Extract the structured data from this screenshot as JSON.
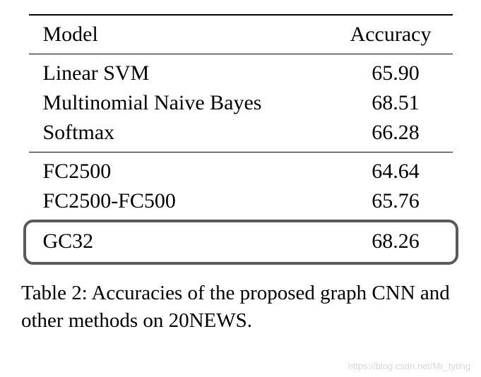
{
  "table": {
    "columns": [
      "Model",
      "Accuracy"
    ],
    "groups": [
      {
        "rows": [
          {
            "model": "Linear SVM",
            "accuracy": "65.90"
          },
          {
            "model": "Multinomial Naive Bayes",
            "accuracy": "68.51"
          },
          {
            "model": "Softmax",
            "accuracy": "66.28"
          }
        ]
      },
      {
        "rows": [
          {
            "model": "FC2500",
            "accuracy": "64.64"
          },
          {
            "model": "FC2500-FC500",
            "accuracy": "65.76"
          }
        ]
      },
      {
        "rows": [
          {
            "model": "GC32",
            "accuracy": "68.26"
          }
        ],
        "highlighted": true
      }
    ],
    "highlight_border_color": "#5a5a5a",
    "highlight_border_width": 4,
    "highlight_border_radius": 14,
    "font_family": "Times New Roman",
    "font_size": 30,
    "text_color": "#000000",
    "background_color": "#ffffff",
    "rule_color": "#000000"
  },
  "caption": "Table 2: Accuracies of the proposed graph CNN and other methods on 20NEWS.",
  "watermark": "https://blog.csdn.net/Mr_tyting"
}
